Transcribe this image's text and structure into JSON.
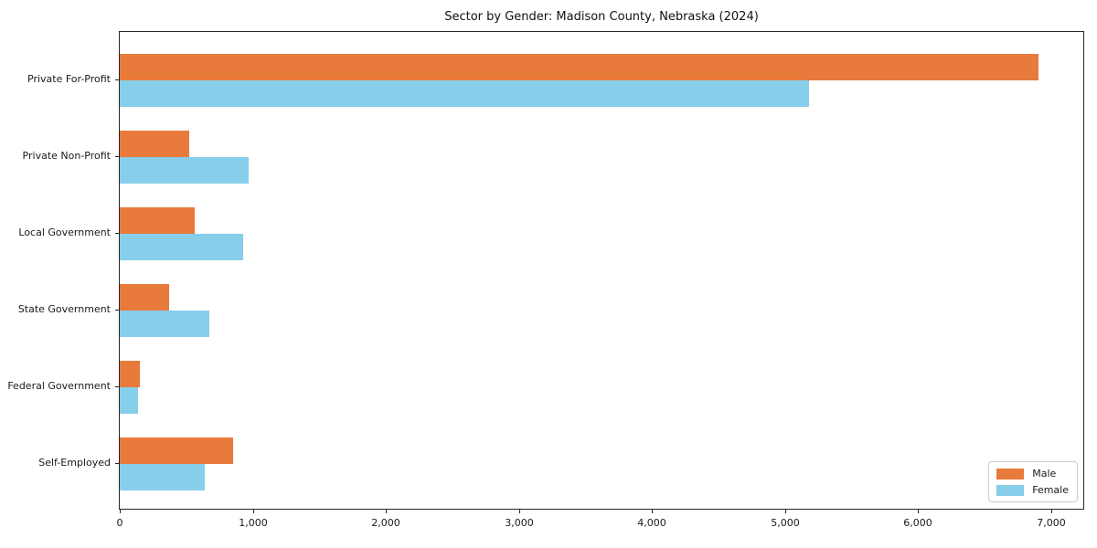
{
  "chart_data": {
    "type": "bar",
    "orientation": "horizontal",
    "title": "Sector by Gender: Madison County, Nebraska (2024)",
    "xlabel": "",
    "ylabel": "",
    "categories": [
      "Private For-Profit",
      "Private Non-Profit",
      "Local Government",
      "State Government",
      "Federal Government",
      "Self-Employed"
    ],
    "series": [
      {
        "name": "Male",
        "color": "#E87A3C",
        "values": [
          6900,
          520,
          560,
          370,
          150,
          850
        ]
      },
      {
        "name": "Female",
        "color": "#87CEEB",
        "values": [
          5180,
          970,
          930,
          670,
          140,
          640
        ]
      }
    ],
    "xlim": [
      0,
      7240
    ],
    "x_ticks": {
      "values": [
        0,
        1000,
        2000,
        3000,
        4000,
        5000,
        6000,
        7000
      ],
      "labels": [
        "0",
        "1,000",
        "2,000",
        "3,000",
        "4,000",
        "5,000",
        "6,000",
        "7,000"
      ]
    },
    "grid": false,
    "legend": {
      "position": "lower right"
    },
    "colors": {
      "axis": "#262626",
      "text": "#1a1a1a",
      "background": "#ffffff"
    }
  }
}
